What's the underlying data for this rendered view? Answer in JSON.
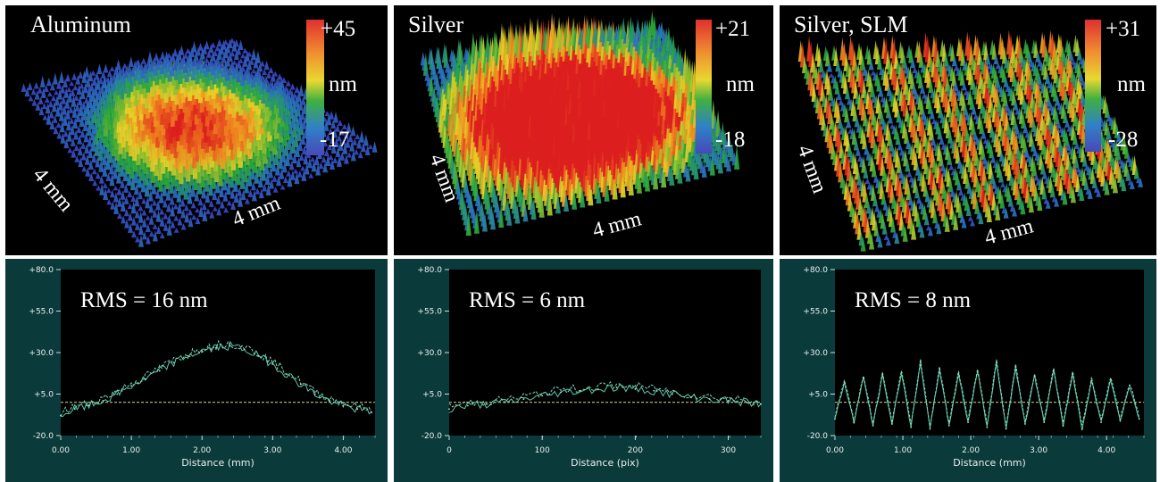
{
  "surfaces": [
    {
      "title": "Aluminum",
      "max_label": "+45",
      "unit_label": "nm",
      "min_label": "-17",
      "dim_left": "4 mm",
      "dim_bottom": "4 mm",
      "pattern": "dome"
    },
    {
      "title": "Silver",
      "max_label": "+21",
      "unit_label": "nm",
      "min_label": "-18",
      "dim_left": "4 mm",
      "dim_bottom": "4 mm",
      "pattern": "flat-dome"
    },
    {
      "title": "Silver, SLM",
      "max_label": "+31",
      "unit_label": "nm",
      "min_label": "-28",
      "dim_left": "4 mm",
      "dim_bottom": "4 mm",
      "pattern": "ripple"
    }
  ],
  "chart_data": [
    {
      "type": "line",
      "annotation": "RMS = 16 nm",
      "xlabel": "Distance (mm)",
      "x_ticks": [
        "0.00",
        "1.00",
        "2.00",
        "3.00",
        "4.00"
      ],
      "x_tick_values": [
        0,
        1,
        2,
        3,
        4
      ],
      "xlim": [
        0,
        4.45
      ],
      "y_ticks": [
        "+80.0",
        "+55.0",
        "+30.0",
        "+5.0",
        "-20.0"
      ],
      "y_tick_values": [
        80,
        55,
        30,
        5,
        -20
      ],
      "ylim": [
        -20,
        80
      ],
      "baseline": 0,
      "x": [
        0.0,
        0.2,
        0.4,
        0.6,
        0.8,
        1.0,
        1.2,
        1.4,
        1.6,
        1.8,
        2.0,
        2.2,
        2.4,
        2.6,
        2.8,
        3.0,
        3.2,
        3.4,
        3.6,
        3.8,
        4.0,
        4.2,
        4.4
      ],
      "values": [
        -8,
        -4,
        -2,
        1,
        5,
        10,
        14,
        19,
        24,
        28,
        31,
        33,
        34,
        32,
        28,
        23,
        17,
        11,
        5,
        1,
        -2,
        -4,
        -6
      ]
    },
    {
      "type": "line",
      "annotation": "RMS = 6 nm",
      "xlabel": "Distance (pix)",
      "x_ticks": [
        "0",
        "100",
        "200",
        "300"
      ],
      "x_tick_values": [
        0,
        100,
        200,
        300
      ],
      "xlim": [
        0,
        335
      ],
      "y_ticks": [
        "+80.0",
        "+55.0",
        "+30.0",
        "+5.0",
        "-20.0"
      ],
      "y_tick_values": [
        80,
        55,
        30,
        5,
        -20
      ],
      "ylim": [
        -20,
        80
      ],
      "baseline": 0,
      "x": [
        0,
        20,
        40,
        60,
        80,
        100,
        120,
        140,
        160,
        180,
        200,
        220,
        240,
        260,
        280,
        300,
        320,
        335
      ],
      "values": [
        -4,
        -2,
        -1,
        0,
        2,
        4,
        6,
        7,
        8,
        9,
        8,
        7,
        5,
        3,
        2,
        1,
        0,
        -1
      ]
    },
    {
      "type": "line",
      "annotation": "RMS = 8 nm",
      "xlabel": "Distance (mm)",
      "x_ticks": [
        "0.00",
        "1.00",
        "2.00",
        "3.00",
        "4.00"
      ],
      "x_tick_values": [
        0,
        1,
        2,
        3,
        4
      ],
      "xlim": [
        0,
        4.55
      ],
      "y_ticks": [
        "+80.0",
        "+55.0",
        "+30.0",
        "+5.0",
        "-20.0"
      ],
      "y_tick_values": [
        80,
        55,
        30,
        5,
        -20
      ],
      "ylim": [
        -20,
        80
      ],
      "baseline": 0,
      "x": [
        0.0,
        0.14,
        0.28,
        0.42,
        0.56,
        0.7,
        0.84,
        0.98,
        1.12,
        1.26,
        1.4,
        1.54,
        1.68,
        1.82,
        1.96,
        2.1,
        2.24,
        2.38,
        2.52,
        2.66,
        2.8,
        2.94,
        3.08,
        3.22,
        3.36,
        3.5,
        3.64,
        3.78,
        3.92,
        4.06,
        4.2,
        4.34,
        4.48
      ],
      "values": [
        -10,
        12,
        -12,
        15,
        -14,
        16,
        -13,
        18,
        -15,
        24,
        -16,
        20,
        -14,
        17,
        -12,
        19,
        -15,
        24,
        -16,
        21,
        -13,
        16,
        -12,
        19,
        -14,
        17,
        -16,
        13,
        -12,
        14,
        -11,
        10,
        -10
      ]
    }
  ]
}
